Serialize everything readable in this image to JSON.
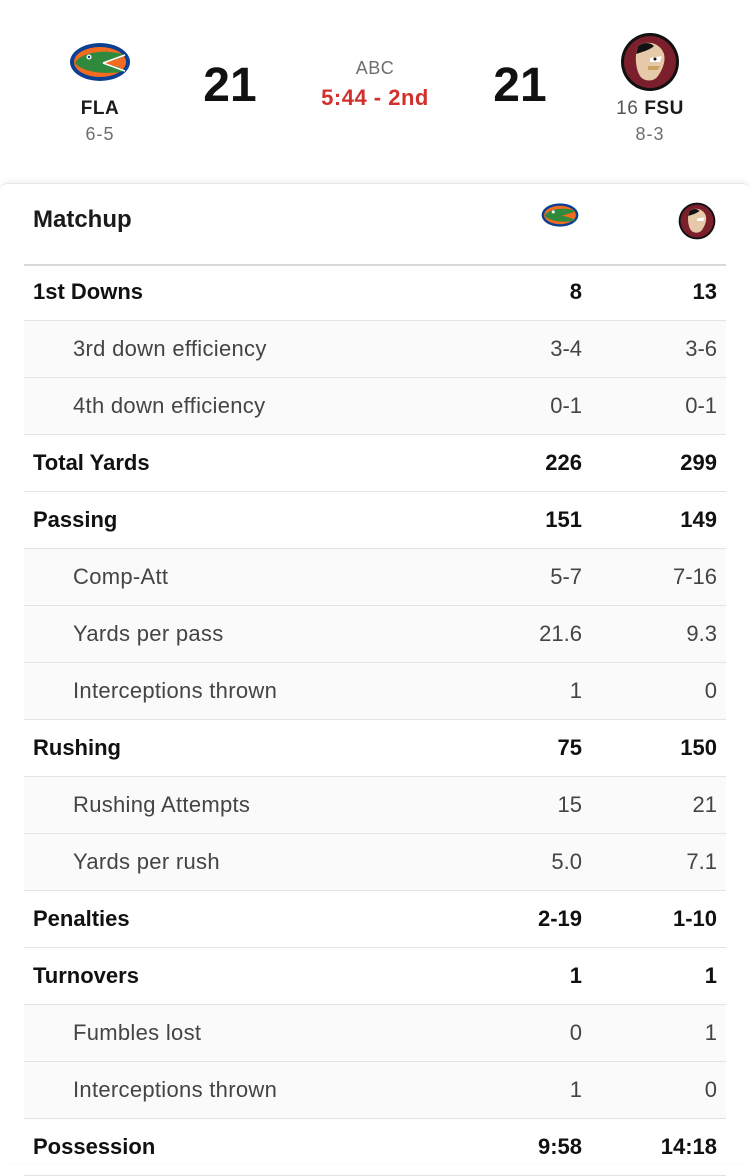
{
  "game": {
    "network": "ABC",
    "clock": "5:44 - 2nd",
    "away": {
      "abbr": "FLA",
      "rank": "",
      "record": "6-5",
      "score": "21",
      "logo": "gator-logo-icon",
      "color": "#0b3f91"
    },
    "home": {
      "abbr": "FSU",
      "rank": "16",
      "record": "8-3",
      "score": "21",
      "logo": "seminole-logo-icon",
      "color": "#7a1f2b"
    }
  },
  "colors": {
    "clock": "#d0312d",
    "gator_green": "#2f8a3d",
    "gator_orange": "#f26b21",
    "gator_blue": "#0b3f91",
    "fsu_garnet": "#7a1f2b",
    "fsu_gold": "#c9a463"
  },
  "matchup": {
    "title": "Matchup",
    "rows": [
      {
        "label": "1st Downs",
        "away": "8",
        "home": "13",
        "type": "main"
      },
      {
        "label": "3rd down efficiency",
        "away": "3-4",
        "home": "3-6",
        "type": "sub"
      },
      {
        "label": "4th down efficiency",
        "away": "0-1",
        "home": "0-1",
        "type": "sub"
      },
      {
        "label": "Total Yards",
        "away": "226",
        "home": "299",
        "type": "main"
      },
      {
        "label": "Passing",
        "away": "151",
        "home": "149",
        "type": "main"
      },
      {
        "label": "Comp-Att",
        "away": "5-7",
        "home": "7-16",
        "type": "sub"
      },
      {
        "label": "Yards per pass",
        "away": "21.6",
        "home": "9.3",
        "type": "sub"
      },
      {
        "label": "Interceptions thrown",
        "away": "1",
        "home": "0",
        "type": "sub"
      },
      {
        "label": "Rushing",
        "away": "75",
        "home": "150",
        "type": "main"
      },
      {
        "label": "Rushing Attempts",
        "away": "15",
        "home": "21",
        "type": "sub"
      },
      {
        "label": "Yards per rush",
        "away": "5.0",
        "home": "7.1",
        "type": "sub"
      },
      {
        "label": "Penalties",
        "away": "2-19",
        "home": "1-10",
        "type": "main"
      },
      {
        "label": "Turnovers",
        "away": "1",
        "home": "1",
        "type": "main"
      },
      {
        "label": "Fumbles lost",
        "away": "0",
        "home": "1",
        "type": "sub"
      },
      {
        "label": "Interceptions thrown",
        "away": "1",
        "home": "0",
        "type": "sub"
      },
      {
        "label": "Possession",
        "away": "9:58",
        "home": "14:18",
        "type": "main"
      }
    ]
  }
}
